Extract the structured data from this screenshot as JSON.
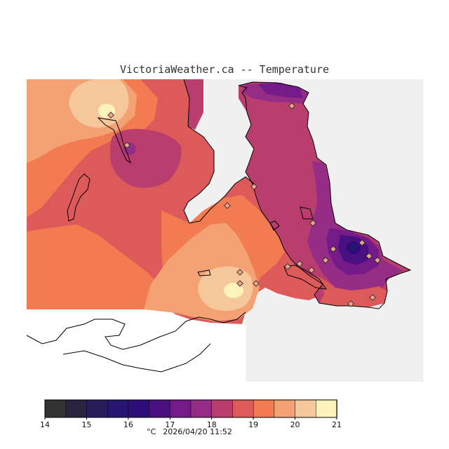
{
  "title": "VictoriaWeather.ca -- Temperature",
  "legend": {
    "unit": "°C",
    "ticks": [
      "14",
      "15",
      "16",
      "17",
      "18",
      "19",
      "20",
      "21"
    ],
    "colors": [
      "#333333",
      "#2c2343",
      "#2a1b5a",
      "#261572",
      "#2d0e78",
      "#4a0f80",
      "#741a89",
      "#952c85",
      "#b93d6d",
      "#dd5a5a",
      "#f27b52",
      "#f4a273",
      "#f6c79a",
      "#fbf2bc"
    ]
  },
  "timestamp": "2026/04/20 11:52",
  "map": {
    "land_color": "#f0f0f0",
    "coast_color": "#000000",
    "station_fill": "#e9a58a"
  }
}
